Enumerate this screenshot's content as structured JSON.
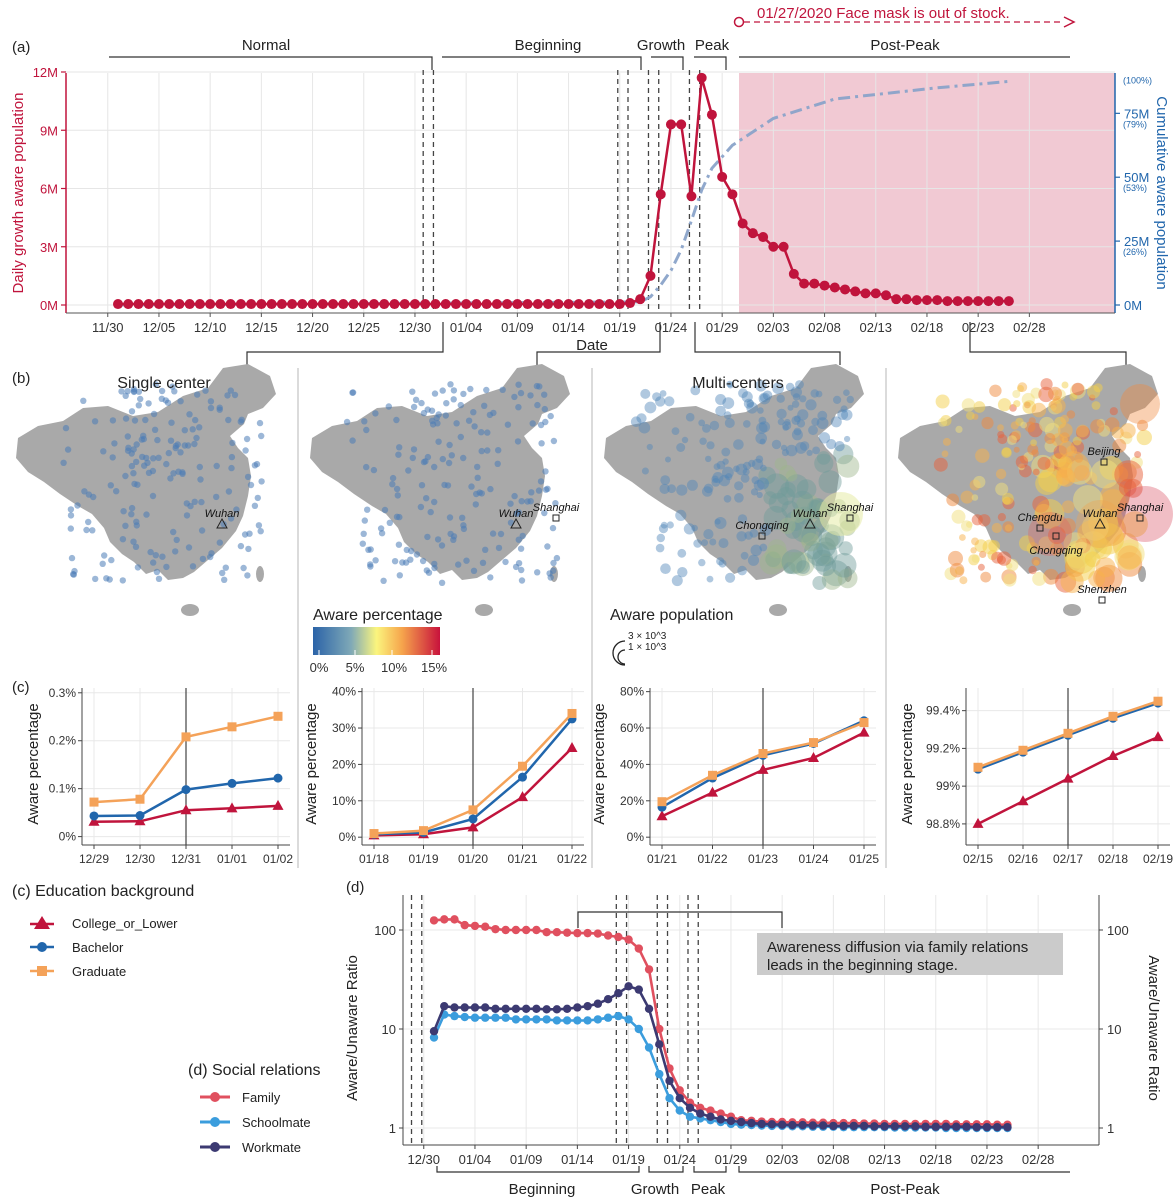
{
  "colors": {
    "red": "#c0143c",
    "blue": "#2166ac",
    "orange": "#f4a259",
    "navy": "#3d3b6e",
    "family": "#e0505f",
    "schoolmate": "#3b9ddd",
    "workmate": "#3c3a72",
    "map_gray": "#a9a9a9",
    "postpeak_fill": "#f1c4ce"
  },
  "panel_a": {
    "label": "(a)",
    "annotation": "01/27/2020  Face mask is out of stock.",
    "stages": [
      "Normal",
      "Beginning",
      "Growth",
      "Peak",
      "Post-Peak"
    ],
    "xlabel": "Date",
    "ylabel_left": "Daily growth aware population",
    "ylabel_right": "Cumulative aware population",
    "left_ticks": [
      "0M",
      "3M",
      "6M",
      "9M",
      "12M"
    ],
    "right_ticks": [
      "0M",
      "25M",
      "50M",
      "75M"
    ],
    "right_pct": [
      "(26%)",
      "(53%)",
      "(79%)",
      "(100%)"
    ],
    "x_ticks": [
      "11/30",
      "12/05",
      "12/10",
      "12/15",
      "12/20",
      "12/25",
      "12/30",
      "01/04",
      "01/09",
      "01/14",
      "01/19",
      "01/24",
      "01/29",
      "02/03",
      "02/08",
      "02/13",
      "02/18",
      "02/23",
      "02/28"
    ]
  },
  "panel_b": {
    "label": "(b)",
    "map_titles": [
      "Single center",
      "",
      "Multi-centers",
      ""
    ],
    "cities": [
      [
        "Wuhan"
      ],
      [
        "Wuhan",
        "Shanghai"
      ],
      [
        "Chongqing",
        "Wuhan",
        "Shanghai"
      ],
      [
        "Beijing",
        "Chengdu",
        "Wuhan",
        "Shanghai",
        "Chongqing",
        "Shenzhen"
      ]
    ],
    "legend_pct_title": "Aware percentage",
    "legend_pct_ticks": [
      "0%",
      "5%",
      "10%",
      "15%"
    ],
    "legend_pop_title": "Aware population",
    "legend_pop_ticks": [
      "3 × 10^3",
      "1 × 10^3"
    ]
  },
  "panel_c": {
    "label": "(c)",
    "ylabel": "Aware percentage",
    "legend_title": "(c) Education background",
    "legend": [
      "College_or_Lower",
      "Bachelor",
      "Graduate"
    ]
  },
  "panel_d": {
    "label": "(d)",
    "ylabel": "Aware/Unaware Ratio",
    "y_ticks": [
      "1",
      "10",
      "100"
    ],
    "annotation_line1": "Awareness diffusion via family relations",
    "annotation_line2": "leads in the beginning stage.",
    "stages": [
      "Beginning",
      "Growth",
      "Peak",
      "Post-Peak"
    ],
    "legend_title": "(d) Social relations",
    "legend": [
      "Family",
      "Schoolmate",
      "Workmate"
    ],
    "x_ticks": [
      "12/30",
      "01/04",
      "01/09",
      "01/14",
      "01/19",
      "01/24",
      "01/29",
      "02/03",
      "02/08",
      "02/13",
      "02/18",
      "02/23",
      "02/28"
    ]
  },
  "chart_data": [
    {
      "type": "line",
      "panel": "a",
      "x_start": "2019-12-01",
      "daily_growth_M": [
        0.05,
        0.05,
        0.05,
        0.05,
        0.05,
        0.05,
        0.05,
        0.05,
        0.05,
        0.05,
        0.05,
        0.05,
        0.05,
        0.05,
        0.05,
        0.05,
        0.05,
        0.05,
        0.05,
        0.05,
        0.05,
        0.05,
        0.05,
        0.05,
        0.05,
        0.05,
        0.05,
        0.05,
        0.05,
        0.05,
        0.05,
        0.05,
        0.05,
        0.05,
        0.05,
        0.05,
        0.05,
        0.05,
        0.05,
        0.05,
        0.05,
        0.05,
        0.05,
        0.05,
        0.05,
        0.05,
        0.05,
        0.05,
        0.05,
        0.05,
        0.1,
        0.3,
        1.5,
        5.7,
        9.3,
        9.3,
        5.6,
        11.7,
        9.8,
        6.6,
        5.7,
        4.2,
        3.7,
        3.5,
        3.0,
        3.0,
        1.6,
        1.1,
        1.1,
        1.0,
        0.9,
        0.8,
        0.7,
        0.6,
        0.6,
        0.5,
        0.3,
        0.3,
        0.25,
        0.25,
        0.25,
        0.2,
        0.2,
        0.2,
        0.2,
        0.2,
        0.2,
        0.2
      ],
      "cumulative_M": [
        [
          0,
          50,
          0.0
        ],
        [
          51,
          53,
          1.2
        ],
        [
          52,
          55,
          3.2
        ],
        [
          53,
          57,
          7.8
        ],
        [
          54,
          58,
          13.5
        ],
        [
          55,
          60,
          21.6
        ],
        [
          56,
          62,
          33.0
        ],
        [
          57,
          64,
          45.0
        ],
        [
          58,
          66,
          53.5
        ],
        [
          60,
          68,
          62.5
        ],
        [
          64,
          72,
          73.0
        ],
        [
          70,
          76,
          80.6
        ],
        [
          80,
          82,
          85.0
        ],
        [
          87,
          88,
          87.5
        ]
      ],
      "left_ylim": [
        0,
        12
      ],
      "right_ylim": [
        0,
        95
      ],
      "stage_dividers": [
        "2019-12-31",
        "2020-01-01",
        "2020-01-19",
        "2020-01-20",
        "2020-01-22",
        "2020-01-23",
        "2020-01-26",
        "2020-01-27"
      ]
    },
    {
      "type": "line",
      "panel": "c1",
      "categories": [
        "12/29",
        "12/30",
        "12/31",
        "01/01",
        "01/02"
      ],
      "y_ticks": [
        "0%",
        "0.1%",
        "0.2%",
        "0.3%"
      ],
      "ylim": [
        -0.005,
        0.31
      ],
      "series": [
        {
          "name": "College_or_Lower",
          "values": [
            0.031,
            0.032,
            0.055,
            0.059,
            0.064
          ]
        },
        {
          "name": "Bachelor",
          "values": [
            0.043,
            0.044,
            0.098,
            0.111,
            0.122
          ]
        },
        {
          "name": "Graduate",
          "values": [
            0.072,
            0.078,
            0.208,
            0.229,
            0.251
          ]
        }
      ]
    },
    {
      "type": "line",
      "panel": "c2",
      "categories": [
        "01/18",
        "01/19",
        "01/20",
        "01/21",
        "01/22"
      ],
      "y_ticks": [
        "0%",
        "10%",
        "20%",
        "30%",
        "40%"
      ],
      "ylim": [
        -0.5,
        41
      ],
      "series": [
        {
          "name": "College_or_Lower",
          "values": [
            0.5,
            0.8,
            2.7,
            11.0,
            24.5
          ]
        },
        {
          "name": "Bachelor",
          "values": [
            0.8,
            1.3,
            5.0,
            16.5,
            32.5
          ]
        },
        {
          "name": "Graduate",
          "values": [
            1.0,
            1.8,
            7.5,
            19.5,
            34.0
          ]
        }
      ]
    },
    {
      "type": "line",
      "panel": "c3",
      "categories": [
        "01/21",
        "01/22",
        "01/23",
        "01/24",
        "01/25"
      ],
      "y_ticks": [
        "0%",
        "20%",
        "40%",
        "60%",
        "80%"
      ],
      "ylim": [
        -1,
        82
      ],
      "series": [
        {
          "name": "College_or_Lower",
          "values": [
            11.5,
            24.5,
            37.0,
            43.5,
            57.5
          ]
        },
        {
          "name": "Bachelor",
          "values": [
            16.5,
            32.5,
            45.0,
            51.5,
            64.0
          ]
        },
        {
          "name": "Graduate",
          "values": [
            19.5,
            34.0,
            46.0,
            52.0,
            63.0
          ]
        }
      ]
    },
    {
      "type": "line",
      "panel": "c4",
      "categories": [
        "02/15",
        "02/16",
        "02/17",
        "02/18",
        "02/19"
      ],
      "y_ticks": [
        "98.8%",
        "99%",
        "99.2%",
        "99.4%"
      ],
      "ylim": [
        98.72,
        99.52
      ],
      "series": [
        {
          "name": "College_or_Lower",
          "values": [
            98.8,
            98.92,
            99.04,
            99.16,
            99.26
          ]
        },
        {
          "name": "Bachelor",
          "values": [
            99.09,
            99.18,
            99.27,
            99.36,
            99.44
          ]
        },
        {
          "name": "Graduate",
          "values": [
            99.1,
            99.19,
            99.28,
            99.37,
            99.45
          ]
        }
      ]
    },
    {
      "type": "line",
      "panel": "d",
      "x_start": "2019-12-31",
      "y_scale": "log",
      "ylim": [
        0.9,
        250
      ],
      "series": [
        {
          "name": "Family",
          "values": [
            125,
            128,
            128,
            112,
            110,
            108,
            102,
            100,
            100,
            100,
            100,
            95,
            95,
            94,
            93,
            93,
            92,
            88,
            85,
            80,
            65,
            40,
            10,
            4,
            2.4,
            1.8,
            1.6,
            1.5,
            1.4,
            1.3,
            1.2,
            1.18,
            1.16,
            1.15,
            1.15,
            1.14,
            1.14,
            1.13,
            1.13,
            1.12,
            1.12,
            1.12,
            1.11,
            1.11,
            1.1,
            1.1,
            1.1,
            1.1,
            1.1,
            1.1,
            1.1,
            1.09,
            1.09,
            1.09,
            1.09,
            1.08,
            1.08
          ]
        },
        {
          "name": "Schoolmate",
          "values": [
            8.2,
            14,
            13.5,
            13.2,
            13,
            13,
            13,
            13,
            12.5,
            12.5,
            12.5,
            12.5,
            12.2,
            12.2,
            12.2,
            12.2,
            12.5,
            13,
            13.5,
            12.5,
            10,
            6.5,
            3.5,
            2,
            1.5,
            1.3,
            1.25,
            1.2,
            1.15,
            1.1,
            1.08,
            1.07,
            1.06,
            1.05,
            1.05,
            1.04,
            1.04,
            1.03,
            1.03,
            1.03,
            1.02,
            1.02,
            1.02,
            1.02,
            1.02,
            1.01,
            1.01,
            1.01,
            1.01,
            1.01,
            1.0,
            1.0,
            1.0,
            1.0,
            1.0,
            1.0,
            1.0
          ]
        },
        {
          "name": "Workmate",
          "values": [
            9.5,
            17,
            16.5,
            16.5,
            16.5,
            16.5,
            16,
            16,
            16,
            16,
            16,
            15.8,
            15.8,
            16,
            16.5,
            17,
            18,
            20,
            23,
            27,
            25,
            16,
            7,
            3,
            2,
            1.6,
            1.4,
            1.3,
            1.22,
            1.18,
            1.15,
            1.12,
            1.1,
            1.09,
            1.08,
            1.07,
            1.07,
            1.06,
            1.06,
            1.05,
            1.05,
            1.05,
            1.05,
            1.04,
            1.04,
            1.04,
            1.04,
            1.04,
            1.03,
            1.03,
            1.03,
            1.03,
            1.03,
            1.02,
            1.02,
            1.02,
            1.02
          ]
        }
      ],
      "stage_dividers": [
        "2019-12-29",
        "2019-12-30",
        "2020-01-18",
        "2020-01-19",
        "2020-01-22",
        "2020-01-23",
        "2020-01-25",
        "2020-01-26"
      ]
    }
  ]
}
